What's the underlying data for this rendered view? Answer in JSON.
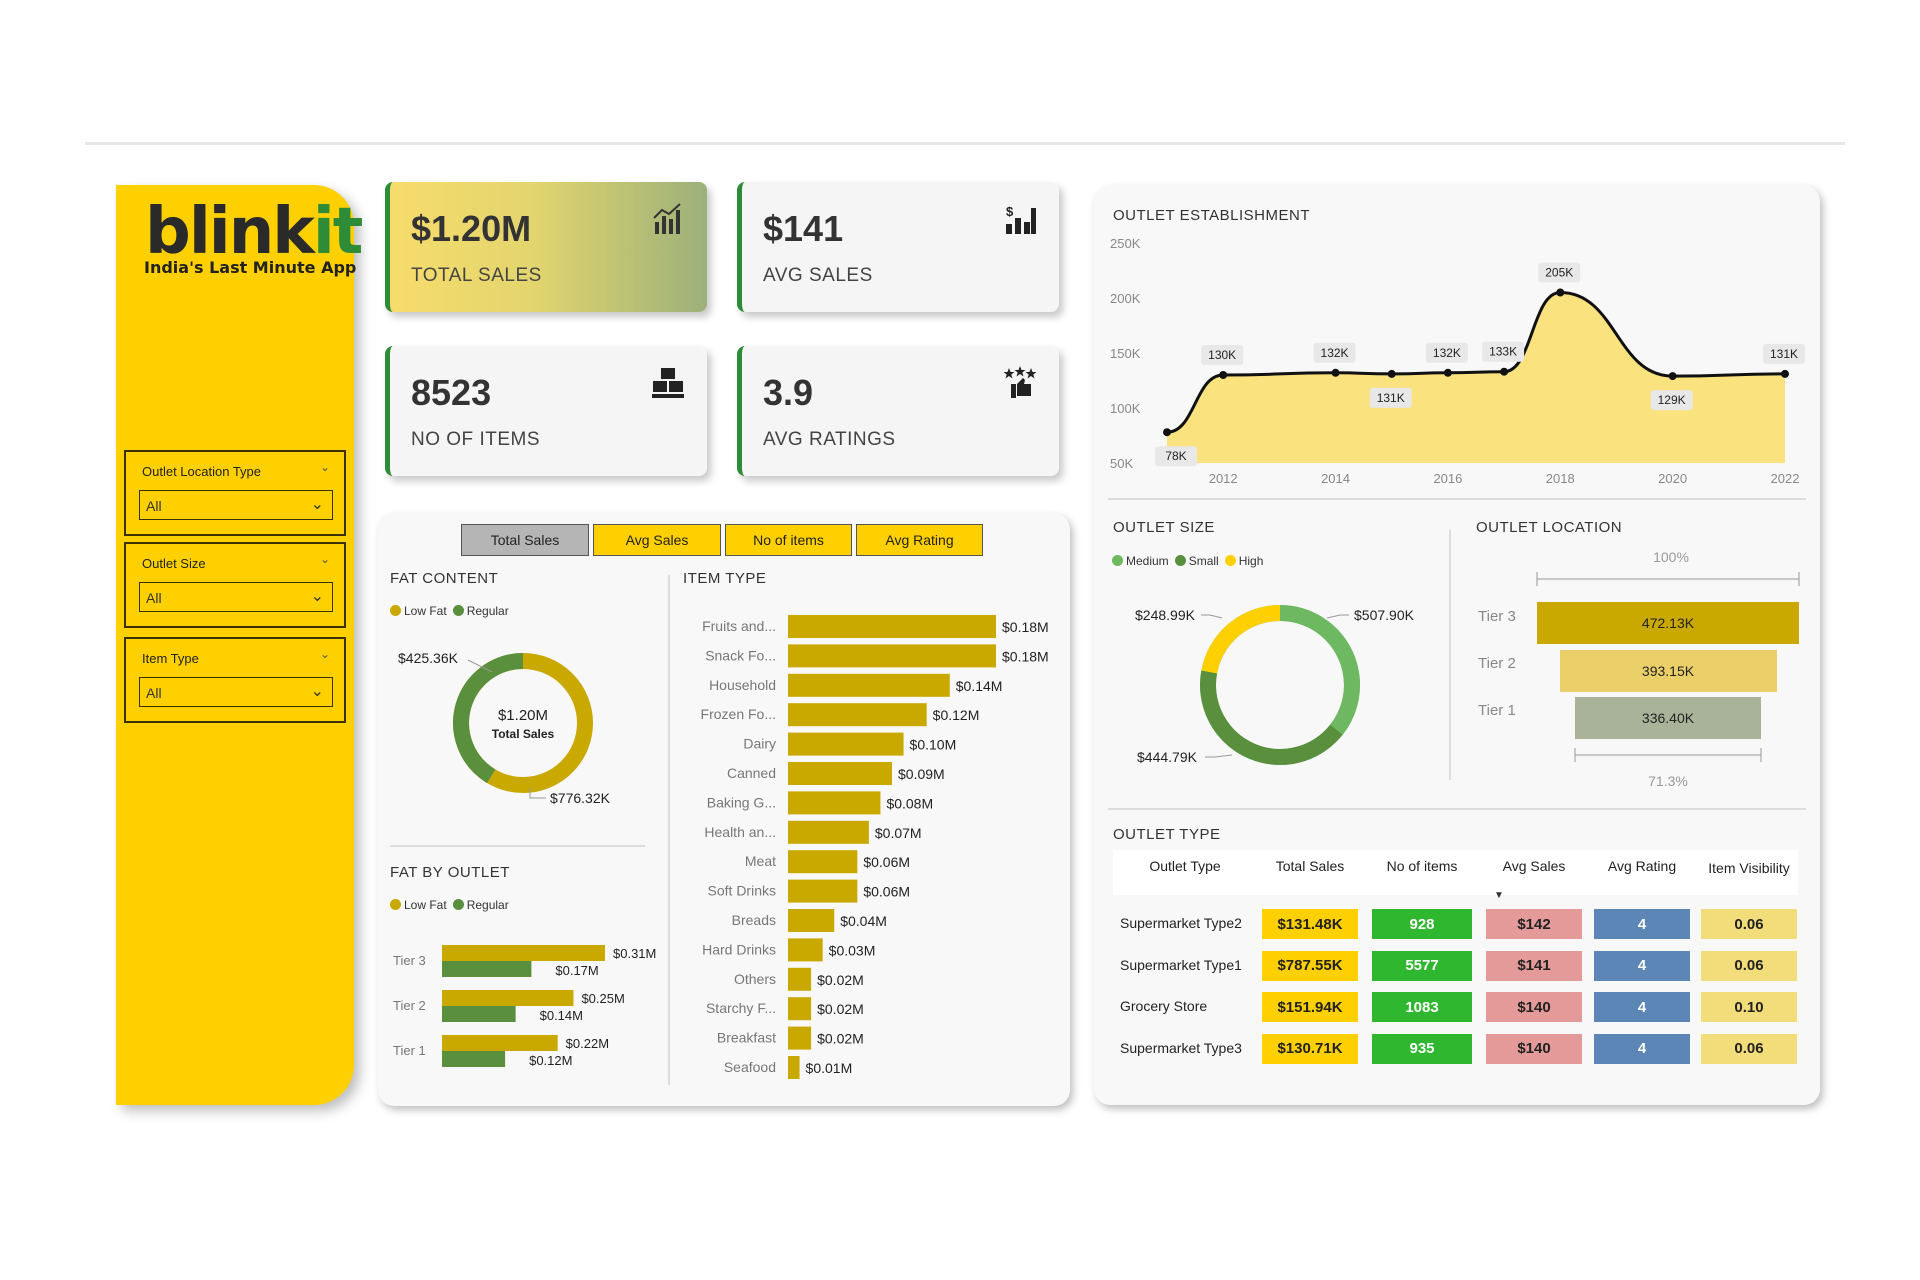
{
  "brand": {
    "logo_main": "blink",
    "logo_accent": "it",
    "tagline": "India's Last Minute App"
  },
  "filters": [
    {
      "label": "Outlet Location Type",
      "value": "All"
    },
    {
      "label": "Outlet Size",
      "value": "All"
    },
    {
      "label": "Item Type",
      "value": "All"
    }
  ],
  "kpis": [
    {
      "value": "$1.20M",
      "label": "TOTAL SALES",
      "icon": "bar-chart-icon"
    },
    {
      "value": "$141",
      "label": "AVG SALES",
      "icon": "dollar-chart-icon"
    },
    {
      "value": "8523",
      "label": "NO OF ITEMS",
      "icon": "boxes-icon"
    },
    {
      "value": "3.9",
      "label": "AVG RATINGS",
      "icon": "rating-icon"
    }
  ],
  "tabs": [
    "Total Sales",
    "Avg Sales",
    "No of items",
    "Avg Rating"
  ],
  "colors": {
    "yellow": "#ffd000",
    "mustard": "#c9a800",
    "green": "#5a8f3e",
    "lightgreen": "#6db860",
    "kpi_border": "#2e8b37"
  },
  "fat_content": {
    "title": "FAT CONTENT",
    "legend": [
      "Low Fat",
      "Regular"
    ],
    "center_value": "$1.20M",
    "center_label": "Total Sales",
    "labels": [
      "$425.36K",
      "$776.32K"
    ]
  },
  "fat_by_outlet": {
    "title": "FAT BY OUTLET",
    "legend": [
      "Low Fat",
      "Regular"
    ]
  },
  "item_type": {
    "title": "ITEM TYPE"
  },
  "outlet_establishment": {
    "title": "OUTLET ESTABLISHMENT"
  },
  "outlet_size": {
    "title": "OUTLET SIZE",
    "legend": [
      "Medium",
      "Small",
      "High"
    ],
    "labels": [
      "$248.99K",
      "$507.90K",
      "$444.79K"
    ]
  },
  "outlet_location": {
    "title": "OUTLET LOCATION",
    "top_pct": "100%",
    "bottom_pct": "71.3%",
    "tiers": [
      {
        "label": "Tier 3",
        "value": "472.13K"
      },
      {
        "label": "Tier 2",
        "value": "393.15K"
      },
      {
        "label": "Tier 1",
        "value": "336.40K"
      }
    ]
  },
  "outlet_type": {
    "title": "OUTLET TYPE",
    "headers": [
      "Outlet Type",
      "Total Sales",
      "No of items",
      "Avg Sales",
      "Avg Rating",
      "Item Visibility"
    ],
    "rows": [
      [
        "Supermarket Type2",
        "$131.48K",
        "928",
        "$142",
        "4",
        "0.06"
      ],
      [
        "Supermarket Type1",
        "$787.55K",
        "5577",
        "$141",
        "4",
        "0.06"
      ],
      [
        "Grocery Store",
        "$151.94K",
        "1083",
        "$140",
        "4",
        "0.10"
      ],
      [
        "Supermarket Type3",
        "$130.71K",
        "935",
        "$140",
        "4",
        "0.06"
      ]
    ]
  },
  "chart_data": [
    {
      "type": "pie",
      "name": "FAT CONTENT",
      "categories": [
        "Low Fat",
        "Regular"
      ],
      "values": [
        776.32,
        425.36
      ],
      "unit": "K"
    },
    {
      "type": "bar",
      "name": "FAT BY OUTLET",
      "categories": [
        "Tier 3",
        "Tier 2",
        "Tier 1"
      ],
      "series": [
        {
          "name": "Low Fat",
          "values": [
            0.31,
            0.25,
            0.22
          ],
          "labels": [
            "$0.31M",
            "$0.25M",
            "$0.22M"
          ]
        },
        {
          "name": "Regular",
          "values": [
            0.17,
            0.14,
            0.12
          ],
          "labels": [
            "$0.17M",
            "$0.14M",
            "$0.12M"
          ]
        }
      ]
    },
    {
      "type": "bar",
      "name": "ITEM TYPE",
      "categories": [
        "Fruits and...",
        "Snack Fo...",
        "Household",
        "Frozen Fo...",
        "Dairy",
        "Canned",
        "Baking G...",
        "Health an...",
        "Meat",
        "Soft Drinks",
        "Breads",
        "Hard Drinks",
        "Others",
        "Starchy F...",
        "Breakfast",
        "Seafood"
      ],
      "values": [
        0.18,
        0.18,
        0.14,
        0.12,
        0.1,
        0.09,
        0.08,
        0.07,
        0.06,
        0.06,
        0.04,
        0.03,
        0.02,
        0.02,
        0.02,
        0.01
      ],
      "labels": [
        "$0.18M",
        "$0.18M",
        "$0.14M",
        "$0.12M",
        "$0.10M",
        "$0.09M",
        "$0.08M",
        "$0.07M",
        "$0.06M",
        "$0.06M",
        "$0.04M",
        "$0.03M",
        "$0.02M",
        "$0.02M",
        "$0.02M",
        "$0.01M"
      ]
    },
    {
      "type": "area",
      "name": "OUTLET ESTABLISHMENT",
      "x": [
        2011,
        2012,
        2014,
        2015,
        2016,
        2017,
        2018,
        2020,
        2022
      ],
      "values": [
        78,
        130,
        132,
        131,
        132,
        133,
        205,
        129,
        131
      ],
      "labels": [
        "78K",
        "130K",
        "132K",
        "131K",
        "132K",
        "133K",
        "205K",
        "129K",
        "131K"
      ],
      "x_ticks": [
        "2012",
        "2014",
        "2016",
        "2018",
        "2020",
        "2022"
      ],
      "y_ticks": [
        "250K",
        "200K",
        "150K",
        "100K",
        "50K"
      ],
      "ylim": [
        50,
        250
      ]
    },
    {
      "type": "pie",
      "name": "OUTLET SIZE",
      "categories": [
        "Medium",
        "Small",
        "High"
      ],
      "values": [
        507.9,
        444.79,
        248.99
      ],
      "unit": "K"
    }
  ]
}
